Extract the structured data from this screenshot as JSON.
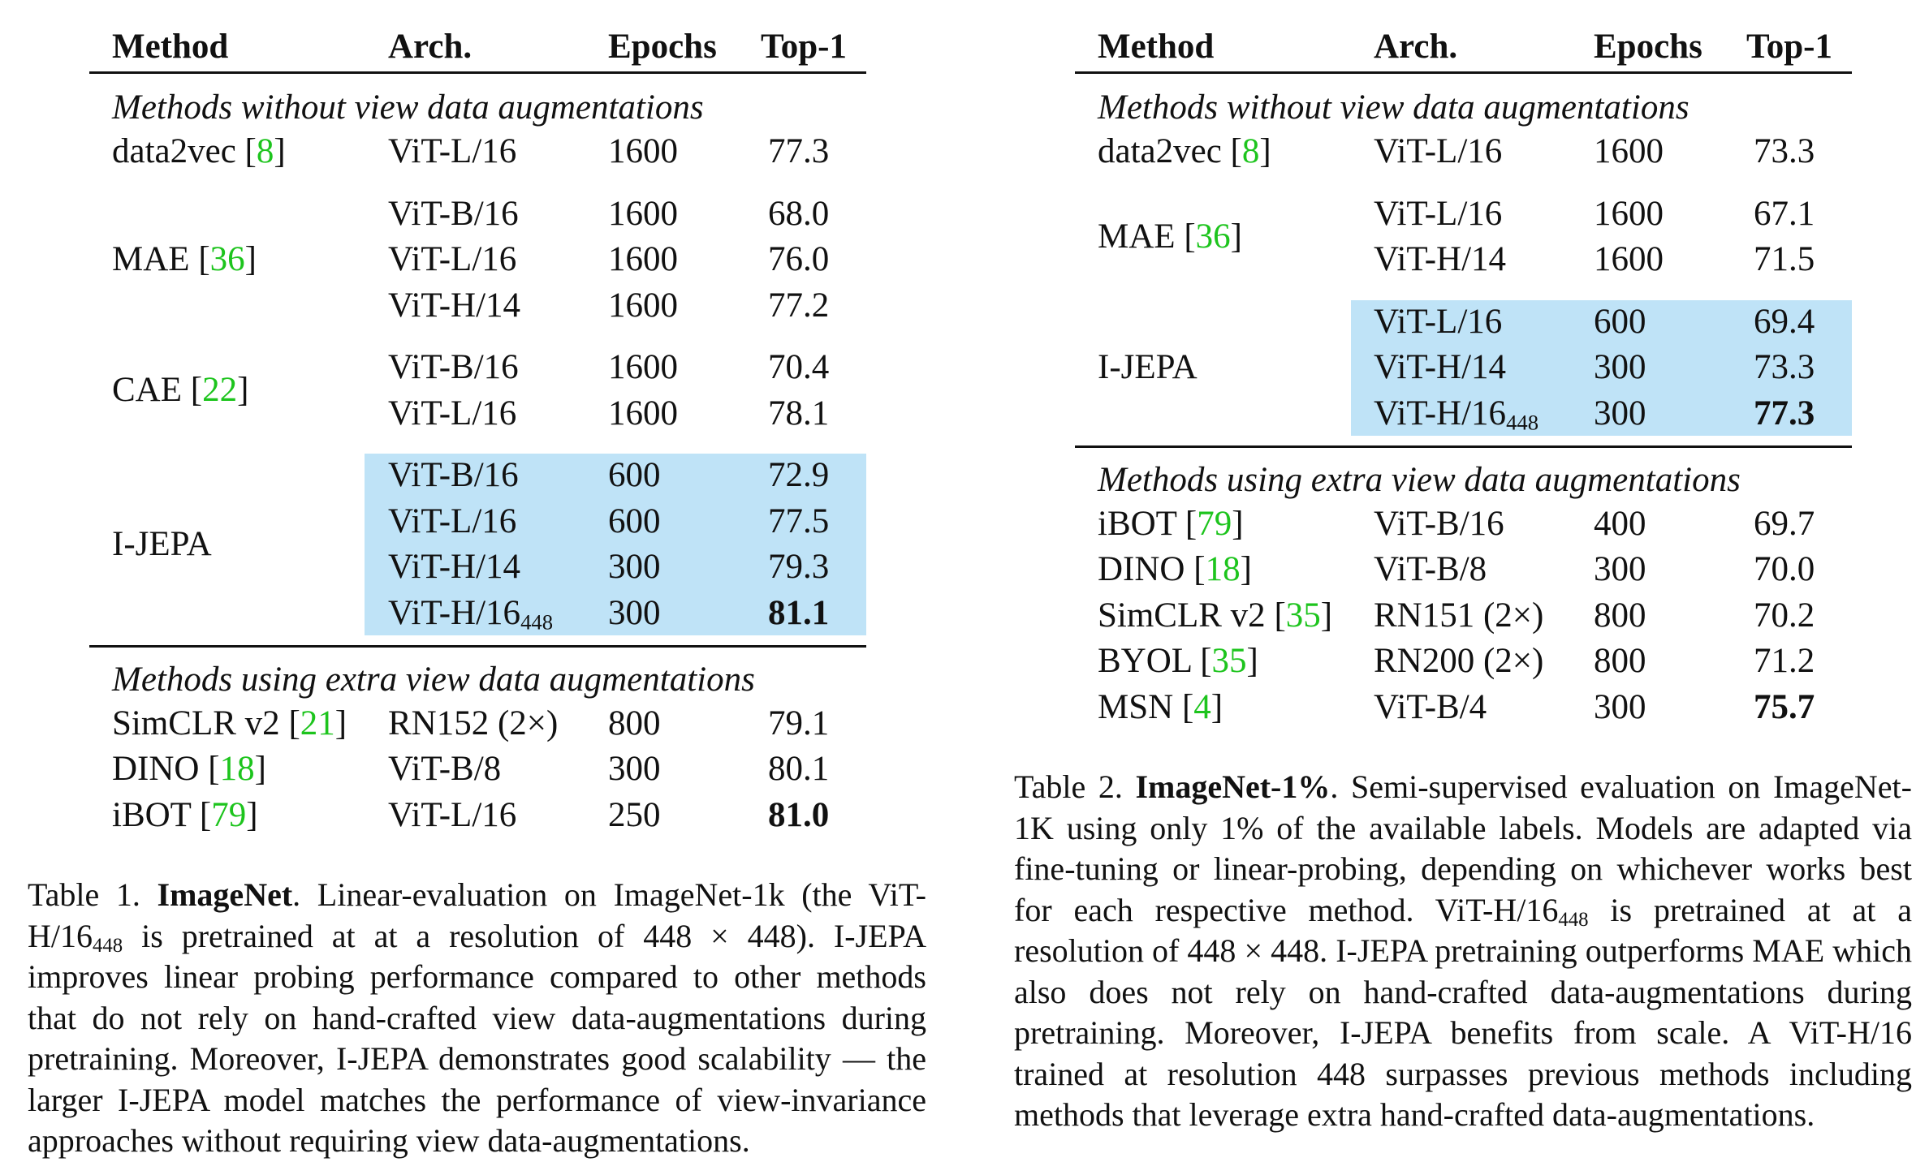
{
  "tables": [
    {
      "columns": [
        "Method",
        "Arch.",
        "Epochs",
        "Top-1"
      ],
      "sections": [
        {
          "heading": "Methods without view data augmentations",
          "groups": [
            {
              "method": "data2vec",
              "ref": "[8]",
              "rows": [
                {
                  "arch": "ViT-L/16",
                  "epochs": 1600,
                  "top1": "77.3"
                }
              ]
            },
            {
              "method": "MAE",
              "ref": "[36]",
              "rows": [
                {
                  "arch": "ViT-B/16",
                  "epochs": 1600,
                  "top1": "68.0"
                },
                {
                  "arch": "ViT-L/16",
                  "epochs": 1600,
                  "top1": "76.0"
                },
                {
                  "arch": "ViT-H/14",
                  "epochs": 1600,
                  "top1": "77.2"
                }
              ]
            },
            {
              "method": "CAE",
              "ref": "[22]",
              "rows": [
                {
                  "arch": "ViT-B/16",
                  "epochs": 1600,
                  "top1": "70.4"
                },
                {
                  "arch": "ViT-L/16",
                  "epochs": 1600,
                  "top1": "78.1"
                }
              ]
            },
            {
              "method": "I-JEPA",
              "highlight": true,
              "rows": [
                {
                  "arch": "ViT-B/16",
                  "epochs": 600,
                  "top1": "72.9"
                },
                {
                  "arch": "ViT-L/16",
                  "epochs": 600,
                  "top1": "77.5"
                },
                {
                  "arch": "ViT-H/14",
                  "epochs": 300,
                  "top1": "79.3"
                },
                {
                  "arch": "ViT-H/16",
                  "arch_sub": "448",
                  "epochs": 300,
                  "top1": "81.1",
                  "best": true
                }
              ]
            }
          ]
        },
        {
          "heading": "Methods using extra view data augmentations",
          "groups": [
            {
              "method": "SimCLR v2",
              "ref": "[21]",
              "rows": [
                {
                  "arch": "RN152 (2×)",
                  "epochs": 800,
                  "top1": "79.1"
                }
              ]
            },
            {
              "method": "DINO",
              "ref": "[18]",
              "rows": [
                {
                  "arch": "ViT-B/8",
                  "epochs": 300,
                  "top1": "80.1"
                }
              ]
            },
            {
              "method": "iBOT",
              "ref": "[79]",
              "rows": [
                {
                  "arch": "ViT-L/16",
                  "epochs": 250,
                  "top1": "81.0",
                  "best": true
                }
              ]
            }
          ]
        }
      ],
      "caption": {
        "parts": [
          {
            "text": "Table 1. "
          },
          {
            "text": "ImageNet",
            "style": "bold"
          },
          {
            "text": ". Linear-evaluation on ImageNet-1k (the ViT-H/16"
          },
          {
            "text": "448",
            "style": "sub"
          },
          {
            "text": " is pretrained at at a resolution of 448 × 448). I-JEPA improves linear probing performance compared to other methods that do not rely on hand-crafted view data-augmentations during pretraining. Moreover, I-JEPA demonstrates good scalability — the larger I-JEPA model matches the performance of view-invariance approaches without requiring view data-augmentations."
          }
        ]
      }
    },
    {
      "columns": [
        "Method",
        "Arch.",
        "Epochs",
        "Top-1"
      ],
      "sections": [
        {
          "heading": "Methods without view data augmentations",
          "groups": [
            {
              "method": "data2vec",
              "ref": "[8]",
              "rows": [
                {
                  "arch": "ViT-L/16",
                  "epochs": 1600,
                  "top1": "73.3"
                }
              ]
            },
            {
              "method": "MAE",
              "ref": "[36]",
              "rows": [
                {
                  "arch": "ViT-L/16",
                  "epochs": 1600,
                  "top1": "67.1"
                },
                {
                  "arch": "ViT-H/14",
                  "epochs": 1600,
                  "top1": "71.5"
                }
              ]
            },
            {
              "method": "I-JEPA",
              "highlight": true,
              "rows": [
                {
                  "arch": "ViT-L/16",
                  "epochs": 600,
                  "top1": "69.4"
                },
                {
                  "arch": "ViT-H/14",
                  "epochs": 300,
                  "top1": "73.3"
                },
                {
                  "arch": "ViT-H/16",
                  "arch_sub": "448",
                  "epochs": 300,
                  "top1": "77.3",
                  "best": true
                }
              ]
            }
          ]
        },
        {
          "heading": "Methods using extra view data augmentations",
          "groups": [
            {
              "method": "iBOT",
              "ref": "[79]",
              "rows": [
                {
                  "arch": "ViT-B/16",
                  "epochs": 400,
                  "top1": "69.7"
                }
              ]
            },
            {
              "method": "DINO",
              "ref": "[18]",
              "rows": [
                {
                  "arch": "ViT-B/8",
                  "epochs": 300,
                  "top1": "70.0"
                }
              ]
            },
            {
              "method": "SimCLR v2",
              "ref": "[35]",
              "rows": [
                {
                  "arch": "RN151 (2×)",
                  "epochs": 800,
                  "top1": "70.2"
                }
              ]
            },
            {
              "method": "BYOL",
              "ref": "[35]",
              "rows": [
                {
                  "arch": "RN200 (2×)",
                  "epochs": 800,
                  "top1": "71.2"
                }
              ]
            },
            {
              "method": "MSN",
              "ref": "[4]",
              "rows": [
                {
                  "arch": "ViT-B/4",
                  "epochs": 300,
                  "top1": "75.7",
                  "best": true
                }
              ]
            }
          ]
        }
      ],
      "caption": {
        "parts": [
          {
            "text": "Table 2. "
          },
          {
            "text": "ImageNet-1%",
            "style": "bold"
          },
          {
            "text": ". Semi-supervised evaluation on ImageNet-1K using only 1% of the available labels. Models are adapted via fine-tuning or linear-probing, depending on whichever works best for each respective method. ViT-H/16"
          },
          {
            "text": "448",
            "style": "sub"
          },
          {
            "text": " is pretrained at at a resolution of 448 × 448. I-JEPA pretraining outperforms MAE which also does not rely on hand-crafted data-augmentations during pretraining. Moreover, I-JEPA benefits from scale. A ViT-H/16 trained at resolution 448 surpasses previous methods including methods that leverage extra hand-crafted data-augmentations."
          }
        ]
      }
    }
  ]
}
